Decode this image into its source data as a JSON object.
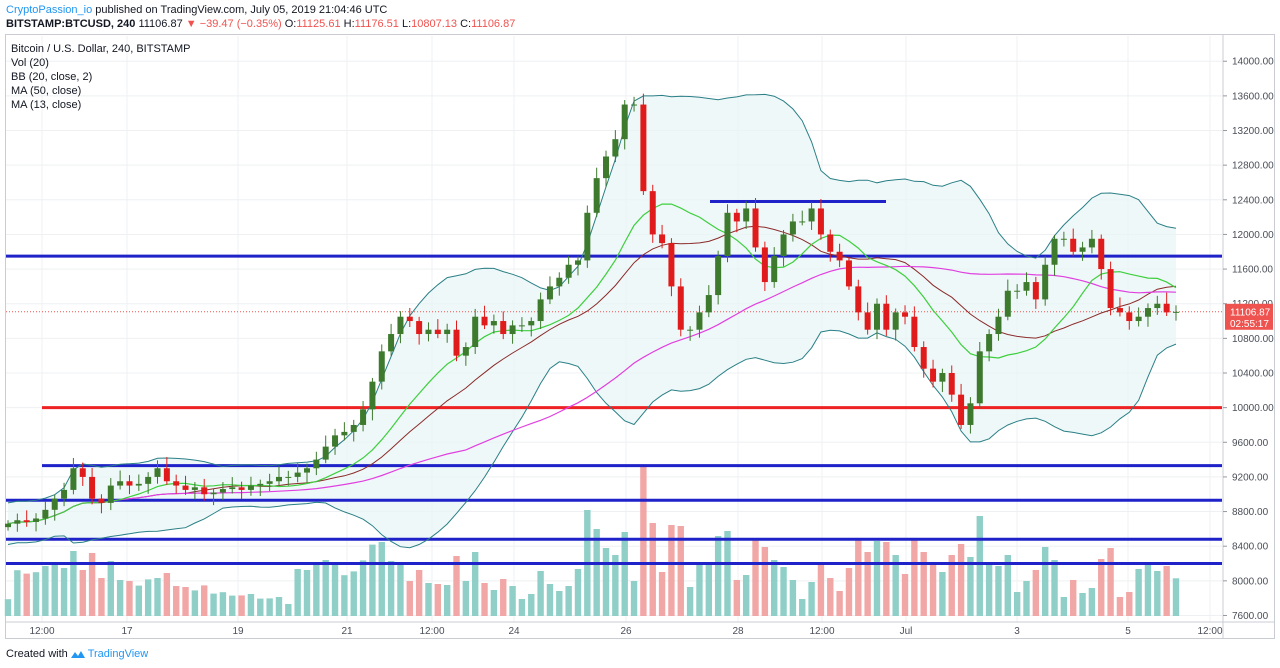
{
  "header": {
    "author": "CryptoPassion_io",
    "published": "published on TradingView.com, July 05, 2019 21:04:46 UTC",
    "symbol": "BITSTAMP:BTCUSD, 240",
    "last": "11106.87",
    "change": "▼ −39.47 (−0.35%)",
    "o_label": "O:",
    "o_value": "11125.61",
    "h_label": "H:",
    "h_value": "11176.51",
    "l_label": "L:",
    "l_value": "10807.13",
    "c_label": "C:",
    "c_value": "11106.87"
  },
  "legend": {
    "title": "Bitcoin / U.S. Dollar, 240, BITSTAMP",
    "items": [
      "Vol (20)",
      "BB (20, close, 2)",
      "MA (50, close)",
      "MA (13, close)"
    ]
  },
  "footer": {
    "created_with": "Created with",
    "brand": "TradingView"
  },
  "colors": {
    "up": "#4caf50",
    "down": "#ef5350",
    "up_candle": "#3d7a2e",
    "down_candle": "#e01b1b",
    "hline_blue": "#1e22c8",
    "hline_red": "#ee2222",
    "bb": "#2a7f86",
    "ma50": "#e040e0",
    "ma13": "#3ecf3e",
    "mid": "#8b2a2a"
  },
  "chart_data": {
    "type": "candlestick",
    "title": "Bitcoin / U.S. Dollar, 240, BITSTAMP",
    "ylim": [
      7400,
      14200
    ],
    "y_ticks": [
      "14000.00",
      "13600.00",
      "13200.00",
      "12800.00",
      "12400.00",
      "12000.00",
      "11600.00",
      "11200.00",
      "10800.00",
      "10400.00",
      "10000.00",
      "9600.00",
      "9200.00",
      "8800.00",
      "8400.00",
      "8000.00",
      "7600.00"
    ],
    "x_ticks": [
      "12:00",
      "17",
      "19",
      "21",
      "12:00",
      "24",
      "26",
      "28",
      "12:00",
      "Jul",
      "3",
      "5",
      "12:00"
    ],
    "last_price": "11106.87",
    "countdown": "02:55:17",
    "horizontal_lines": [
      {
        "price": 11750,
        "color": "blue",
        "from": "start"
      },
      {
        "price": 12380,
        "color": "blue",
        "from": "Jun 27"
      },
      {
        "price": 10000,
        "color": "red",
        "from": "Jun 15"
      },
      {
        "price": 9330,
        "color": "blue",
        "from": "Jun 15"
      },
      {
        "price": 8930,
        "color": "blue",
        "from": "start"
      },
      {
        "price": 8480,
        "color": "blue",
        "from": "start"
      },
      {
        "price": 8200,
        "color": "blue",
        "from": "start"
      }
    ],
    "series": [
      {
        "name": "close",
        "values": [
          8660,
          8700,
          8680,
          8720,
          8820,
          8950,
          9050,
          9300,
          9200,
          8950,
          8900,
          9100,
          9150,
          9100,
          9120,
          9200,
          9300,
          9150,
          9100,
          9050,
          9080,
          9000,
          9020,
          9060,
          9080,
          9050,
          9100,
          9120,
          9150,
          9200,
          9200,
          9250,
          9300,
          9400,
          9550,
          9680,
          9720,
          9800,
          9980,
          10300,
          10650,
          10850,
          11050,
          11000,
          10850,
          10900,
          10850,
          10900,
          10600,
          10700,
          11050,
          10950,
          11000,
          10850,
          10950,
          10950,
          11000,
          11250,
          11400,
          11500,
          11650,
          11700,
          12250,
          12650,
          12900,
          13100,
          13500,
          13500,
          12500,
          12000,
          11900,
          11400,
          10900,
          10900,
          11100,
          11300,
          11750,
          12250,
          12150,
          12300,
          11850,
          11450,
          11750,
          12000,
          12150,
          12150,
          12300,
          12000,
          11800,
          11700,
          11400,
          11100,
          10900,
          11200,
          10900,
          11100,
          11050,
          10700,
          10450,
          10300,
          10400,
          10150,
          9800,
          10050,
          10650,
          10850,
          11050,
          11350,
          11350,
          11450,
          11250,
          11650,
          11950,
          11950,
          11800,
          11850,
          11950,
          11600,
          11150,
          11100,
          11000,
          11050,
          11150,
          11200,
          11100,
          11106
        ]
      }
    ],
    "volume": {
      "name": "Vol (20)"
    }
  }
}
